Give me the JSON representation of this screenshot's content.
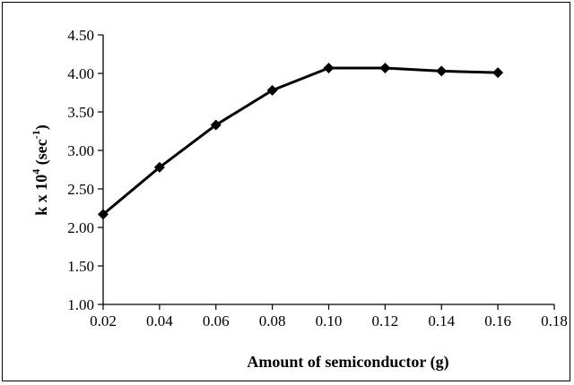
{
  "chart_data": {
    "type": "line",
    "title": "",
    "xlabel": "Amount of semiconductor (g)",
    "ylabel": {
      "main": "k x 10",
      "exp": "4",
      "unit_open": " (sec",
      "unit_exp": "-1",
      "unit_close": ")"
    },
    "xlim": [
      0.02,
      0.18
    ],
    "ylim": [
      1.0,
      4.5
    ],
    "x_ticks": [
      "0.02",
      "0.04",
      "0.06",
      "0.08",
      "0.10",
      "0.12",
      "0.14",
      "0.16",
      "0.18"
    ],
    "y_ticks": [
      "1.00",
      "1.50",
      "2.00",
      "2.50",
      "3.00",
      "3.50",
      "4.00",
      "4.50"
    ],
    "grid": false,
    "marker": "diamond",
    "series": [
      {
        "x": [
          0.02,
          0.04,
          0.06,
          0.08,
          0.1,
          0.12,
          0.14,
          0.16
        ],
        "values": [
          2.17,
          2.78,
          3.33,
          3.78,
          4.07,
          4.07,
          4.03,
          4.01
        ],
        "color": "#000000"
      }
    ]
  }
}
